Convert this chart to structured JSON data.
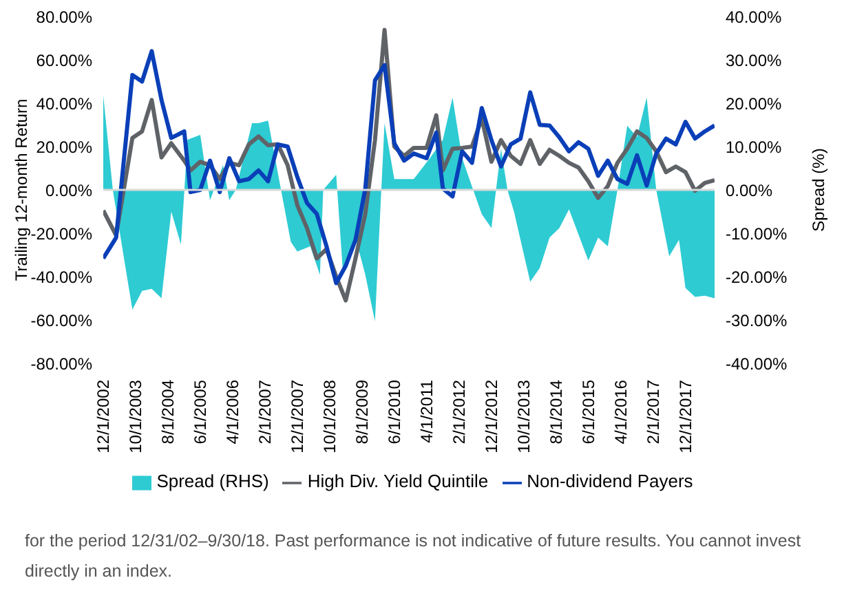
{
  "chart_data": {
    "type": "line",
    "ylabel": "Trailing 12-month Return",
    "y2label": "Spread (%)",
    "xlim": [
      "2002-12",
      "2018-09"
    ],
    "xticks": [
      {
        "value": "2002-12",
        "label": "12/1/2002"
      },
      {
        "value": "2003-10",
        "label": "10/1/2003"
      },
      {
        "value": "2004-08",
        "label": "8/1/2004"
      },
      {
        "value": "2005-06",
        "label": "6/1/2005"
      },
      {
        "value": "2006-04",
        "label": "4/1/2006"
      },
      {
        "value": "2007-02",
        "label": "2/1/2007"
      },
      {
        "value": "2007-12",
        "label": "12/1/2007"
      },
      {
        "value": "2008-10",
        "label": "10/1/2008"
      },
      {
        "value": "2009-08",
        "label": "8/1/2009"
      },
      {
        "value": "2010-06",
        "label": "6/1/2010"
      },
      {
        "value": "2011-04",
        "label": "4/1/2011"
      },
      {
        "value": "2012-02",
        "label": "2/1/2012"
      },
      {
        "value": "2012-12",
        "label": "12/1/2012"
      },
      {
        "value": "2013-10",
        "label": "10/1/2013"
      },
      {
        "value": "2014-08",
        "label": "8/1/2014"
      },
      {
        "value": "2015-06",
        "label": "6/1/2015"
      },
      {
        "value": "2016-04",
        "label": "4/1/2016"
      },
      {
        "value": "2017-02",
        "label": "2/1/2017"
      },
      {
        "value": "2017-12",
        "label": "12/1/2017"
      }
    ],
    "ylim": [
      -80,
      80
    ],
    "yticks": [
      {
        "value": -80,
        "label": "-80.00%"
      },
      {
        "value": -60,
        "label": "-60.00%"
      },
      {
        "value": -40,
        "label": "-40.00%"
      },
      {
        "value": -20,
        "label": "-20.00%"
      },
      {
        "value": 0,
        "label": "0.00%"
      },
      {
        "value": 20,
        "label": "20.00%"
      },
      {
        "value": 40,
        "label": "40.00%"
      },
      {
        "value": 60,
        "label": "60.00%"
      },
      {
        "value": 80,
        "label": "80.00%"
      }
    ],
    "y2lim": [
      -40,
      40
    ],
    "y2ticks": [
      {
        "value": -40,
        "label": "-40.00%"
      },
      {
        "value": -30,
        "label": "-30.00%"
      },
      {
        "value": -20,
        "label": "-20.00%"
      },
      {
        "value": -10,
        "label": "-10.00%"
      },
      {
        "value": 0,
        "label": "0.00%"
      },
      {
        "value": 10,
        "label": "10.00%"
      },
      {
        "value": 20,
        "label": "20.00%"
      },
      {
        "value": 30,
        "label": "30.00%"
      },
      {
        "value": 40,
        "label": "40.00%"
      }
    ],
    "ref_lines": [
      {
        "axis": "y",
        "value": 0,
        "label": null,
        "color": "#d9d9d9"
      }
    ],
    "grid": false,
    "legend": "bottom",
    "marker": "none",
    "series": [
      {
        "name": "Spread (RHS)",
        "type": "area",
        "axis": "y2",
        "color": "#2ecbd3",
        "x": [
          "2002-12",
          "2003-03",
          "2003-09",
          "2003-12",
          "2004-03",
          "2004-06",
          "2004-09",
          "2004-12",
          "2005-02",
          "2005-06",
          "2005-09",
          "2006-01",
          "2006-03",
          "2006-05",
          "2006-10",
          "2006-12",
          "2007-03",
          "2007-07",
          "2007-10",
          "2007-12",
          "2008-04",
          "2008-07",
          "2008-08",
          "2008-12",
          "2009-02",
          "2009-06",
          "2009-09",
          "2009-12",
          "2010-03",
          "2010-06",
          "2010-12",
          "2011-05",
          "2011-09",
          "2011-12",
          "2012-03",
          "2012-06",
          "2012-09",
          "2012-12",
          "2013-03",
          "2013-05",
          "2013-07",
          "2013-12",
          "2014-03",
          "2014-06",
          "2014-09",
          "2014-12",
          "2015-06",
          "2015-09",
          "2015-12",
          "2016-03",
          "2016-06",
          "2016-09",
          "2016-12",
          "2017-03",
          "2017-07",
          "2017-10",
          "2017-12",
          "2018-03",
          "2018-06",
          "2018-09"
        ],
        "values": [
          21.8,
          0,
          -27.6,
          -23.3,
          -22.8,
          -25,
          -5,
          -12.6,
          11.6,
          12.7,
          -2.4,
          5.7,
          -2.4,
          0,
          15.4,
          15.4,
          16,
          0,
          -12,
          -14.2,
          -13,
          -19.6,
          0,
          3.5,
          -18.5,
          -11,
          -19.6,
          -30.3,
          15.4,
          2.5,
          2.5,
          7.3,
          11.6,
          21.3,
          7.3,
          0.8,
          -5.6,
          -8.8,
          9.5,
          0,
          -5,
          -21.2,
          -18,
          -11,
          -8.8,
          -4.5,
          -16.3,
          -11,
          -13,
          0,
          14.8,
          12.2,
          21.3,
          0,
          -15.3,
          -11.5,
          -22.6,
          -24.7,
          -24.4,
          -25
        ]
      },
      {
        "name": "High Div. Yield Quintile",
        "color": "#5f6368",
        "x": [
          "2002-12",
          "2003-04",
          "2003-09",
          "2003-12",
          "2004-03",
          "2004-06",
          "2004-09",
          "2005-01",
          "2005-03",
          "2005-06",
          "2005-09",
          "2005-12",
          "2006-03",
          "2006-06",
          "2006-09",
          "2006-12",
          "2007-03",
          "2007-06",
          "2007-09",
          "2007-12",
          "2008-03",
          "2008-06",
          "2008-09",
          "2008-12",
          "2009-03",
          "2009-06",
          "2009-09",
          "2009-12",
          "2010-03",
          "2010-06",
          "2010-09",
          "2010-12",
          "2011-04",
          "2011-07",
          "2011-09",
          "2011-12",
          "2012-03",
          "2012-06",
          "2012-09",
          "2012-12",
          "2013-03",
          "2013-06",
          "2013-09",
          "2013-12",
          "2014-03",
          "2014-06",
          "2014-09",
          "2014-12",
          "2015-03",
          "2015-06",
          "2015-09",
          "2015-12",
          "2016-03",
          "2016-06",
          "2016-09",
          "2016-12",
          "2017-03",
          "2017-06",
          "2017-09",
          "2017-12",
          "2018-03",
          "2018-06",
          "2018-09"
        ],
        "values": [
          -9.5,
          -21,
          24,
          27,
          41.5,
          15,
          21.5,
          13.5,
          9,
          13,
          11.4,
          5,
          12.5,
          11.4,
          21,
          24.7,
          20.6,
          21,
          11.4,
          -7,
          -17.6,
          -31.6,
          -27.3,
          -40,
          -51,
          -31.6,
          -11,
          23,
          73.8,
          20,
          15.7,
          19.4,
          19.4,
          34.4,
          9,
          19,
          19.4,
          20,
          33,
          13,
          23,
          15.7,
          12,
          23,
          12,
          18.5,
          15.7,
          12.5,
          10.3,
          4,
          -3.7,
          1.7,
          12.5,
          19,
          27,
          24,
          17.8,
          8.2,
          10.8,
          8.2,
          -0.4,
          3.2,
          4.5
        ]
      },
      {
        "name": "Non-dividend Payers",
        "color": "#0a3fb8",
        "x": [
          "2002-12",
          "2003-04",
          "2003-09",
          "2003-12",
          "2004-03",
          "2004-06",
          "2004-09",
          "2005-01",
          "2005-03",
          "2005-06",
          "2005-09",
          "2005-12",
          "2006-03",
          "2006-06",
          "2006-09",
          "2006-12",
          "2007-03",
          "2007-06",
          "2007-09",
          "2007-12",
          "2008-03",
          "2008-06",
          "2008-09",
          "2008-12",
          "2009-03",
          "2009-06",
          "2009-09",
          "2009-12",
          "2010-03",
          "2010-06",
          "2010-09",
          "2010-12",
          "2011-04",
          "2011-07",
          "2011-09",
          "2011-12",
          "2012-03",
          "2012-06",
          "2012-09",
          "2012-12",
          "2013-03",
          "2013-06",
          "2013-09",
          "2013-12",
          "2014-03",
          "2014-06",
          "2014-09",
          "2014-12",
          "2015-03",
          "2015-06",
          "2015-09",
          "2015-12",
          "2016-03",
          "2016-06",
          "2016-09",
          "2016-12",
          "2017-03",
          "2017-06",
          "2017-09",
          "2017-12",
          "2018-03",
          "2018-06",
          "2018-09"
        ],
        "values": [
          -31.6,
          -22,
          53,
          50,
          64,
          41.5,
          24,
          27,
          -1,
          0,
          13.5,
          -1,
          14.6,
          4,
          5,
          9,
          4,
          21,
          20,
          6,
          -6,
          -11,
          -26,
          -43,
          -35,
          -23,
          0.6,
          50.5,
          57.6,
          21.5,
          13.5,
          16.8,
          14.6,
          26.5,
          0.6,
          -3,
          17.8,
          12.5,
          37.8,
          23,
          10.8,
          21,
          23.7,
          45,
          30,
          29.7,
          24.3,
          17.8,
          22,
          19,
          6.5,
          13.5,
          5,
          2.8,
          16,
          2,
          16.8,
          23.7,
          21,
          31.4,
          23.7,
          27,
          29.7
        ]
      }
    ],
    "annotations": [
      "for the period 12/31/02–9/30/18. Past performance is not indicative of future results. You cannot invest directly in an index."
    ]
  }
}
